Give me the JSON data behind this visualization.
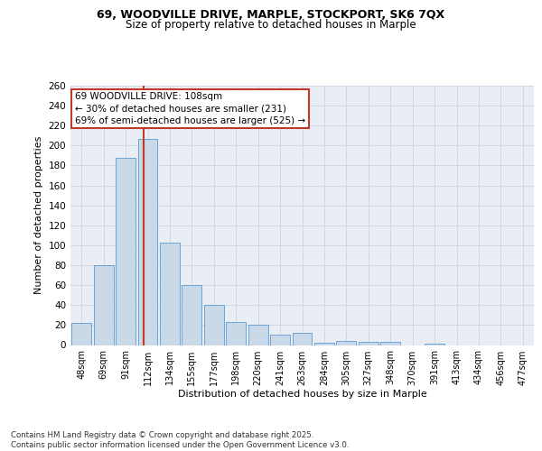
{
  "title_line1": "69, WOODVILLE DRIVE, MARPLE, STOCKPORT, SK6 7QX",
  "title_line2": "Size of property relative to detached houses in Marple",
  "xlabel": "Distribution of detached houses by size in Marple",
  "ylabel": "Number of detached properties",
  "categories": [
    "48sqm",
    "69sqm",
    "91sqm",
    "112sqm",
    "134sqm",
    "155sqm",
    "177sqm",
    "198sqm",
    "220sqm",
    "241sqm",
    "263sqm",
    "284sqm",
    "305sqm",
    "327sqm",
    "348sqm",
    "370sqm",
    "391sqm",
    "413sqm",
    "434sqm",
    "456sqm",
    "477sqm"
  ],
  "values": [
    22,
    80,
    188,
    207,
    103,
    60,
    40,
    23,
    20,
    10,
    12,
    2,
    4,
    3,
    3,
    0,
    1,
    0,
    0,
    0,
    0
  ],
  "bar_color": "#c9d9e8",
  "bar_edge_color": "#5b9bd5",
  "grid_color": "#d0d8e4",
  "background_color": "#e8eef4",
  "vline_color": "#c0392b",
  "annotation_box_text": "69 WOODVILLE DRIVE: 108sqm\n← 30% of detached houses are smaller (231)\n69% of semi-detached houses are larger (525) →",
  "annotation_box_color": "#c0392b",
  "annotation_box_bg": "#ffffff",
  "footer_text": "Contains HM Land Registry data © Crown copyright and database right 2025.\nContains public sector information licensed under the Open Government Licence v3.0.",
  "ylim": [
    0,
    260
  ],
  "yticks": [
    0,
    20,
    40,
    60,
    80,
    100,
    120,
    140,
    160,
    180,
    200,
    220,
    240,
    260
  ],
  "title_fontsize": 9,
  "subtitle_fontsize": 8.5
}
